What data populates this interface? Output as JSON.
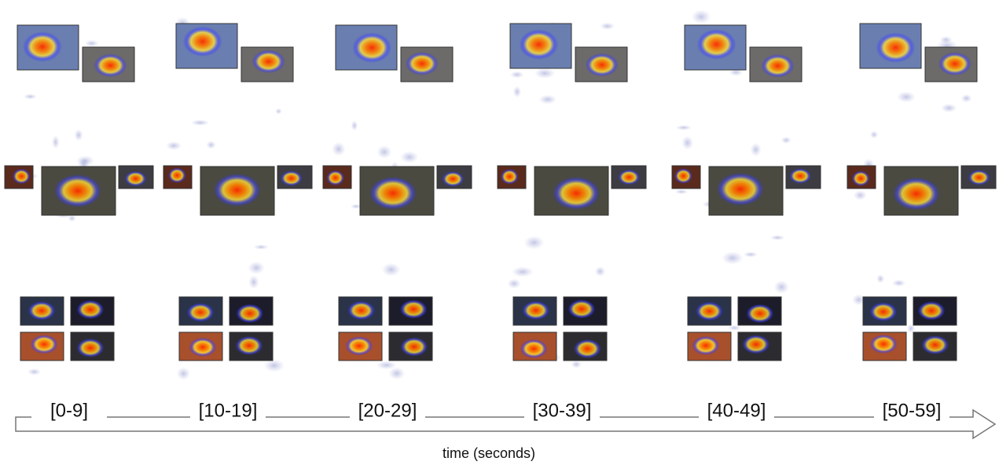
{
  "timeline": {
    "labels": [
      "[0-9]",
      "[10-19]",
      "[20-29]",
      "[30-39]",
      "[40-49]",
      "[50-59]"
    ],
    "axis_label": "time (seconds)"
  }
}
